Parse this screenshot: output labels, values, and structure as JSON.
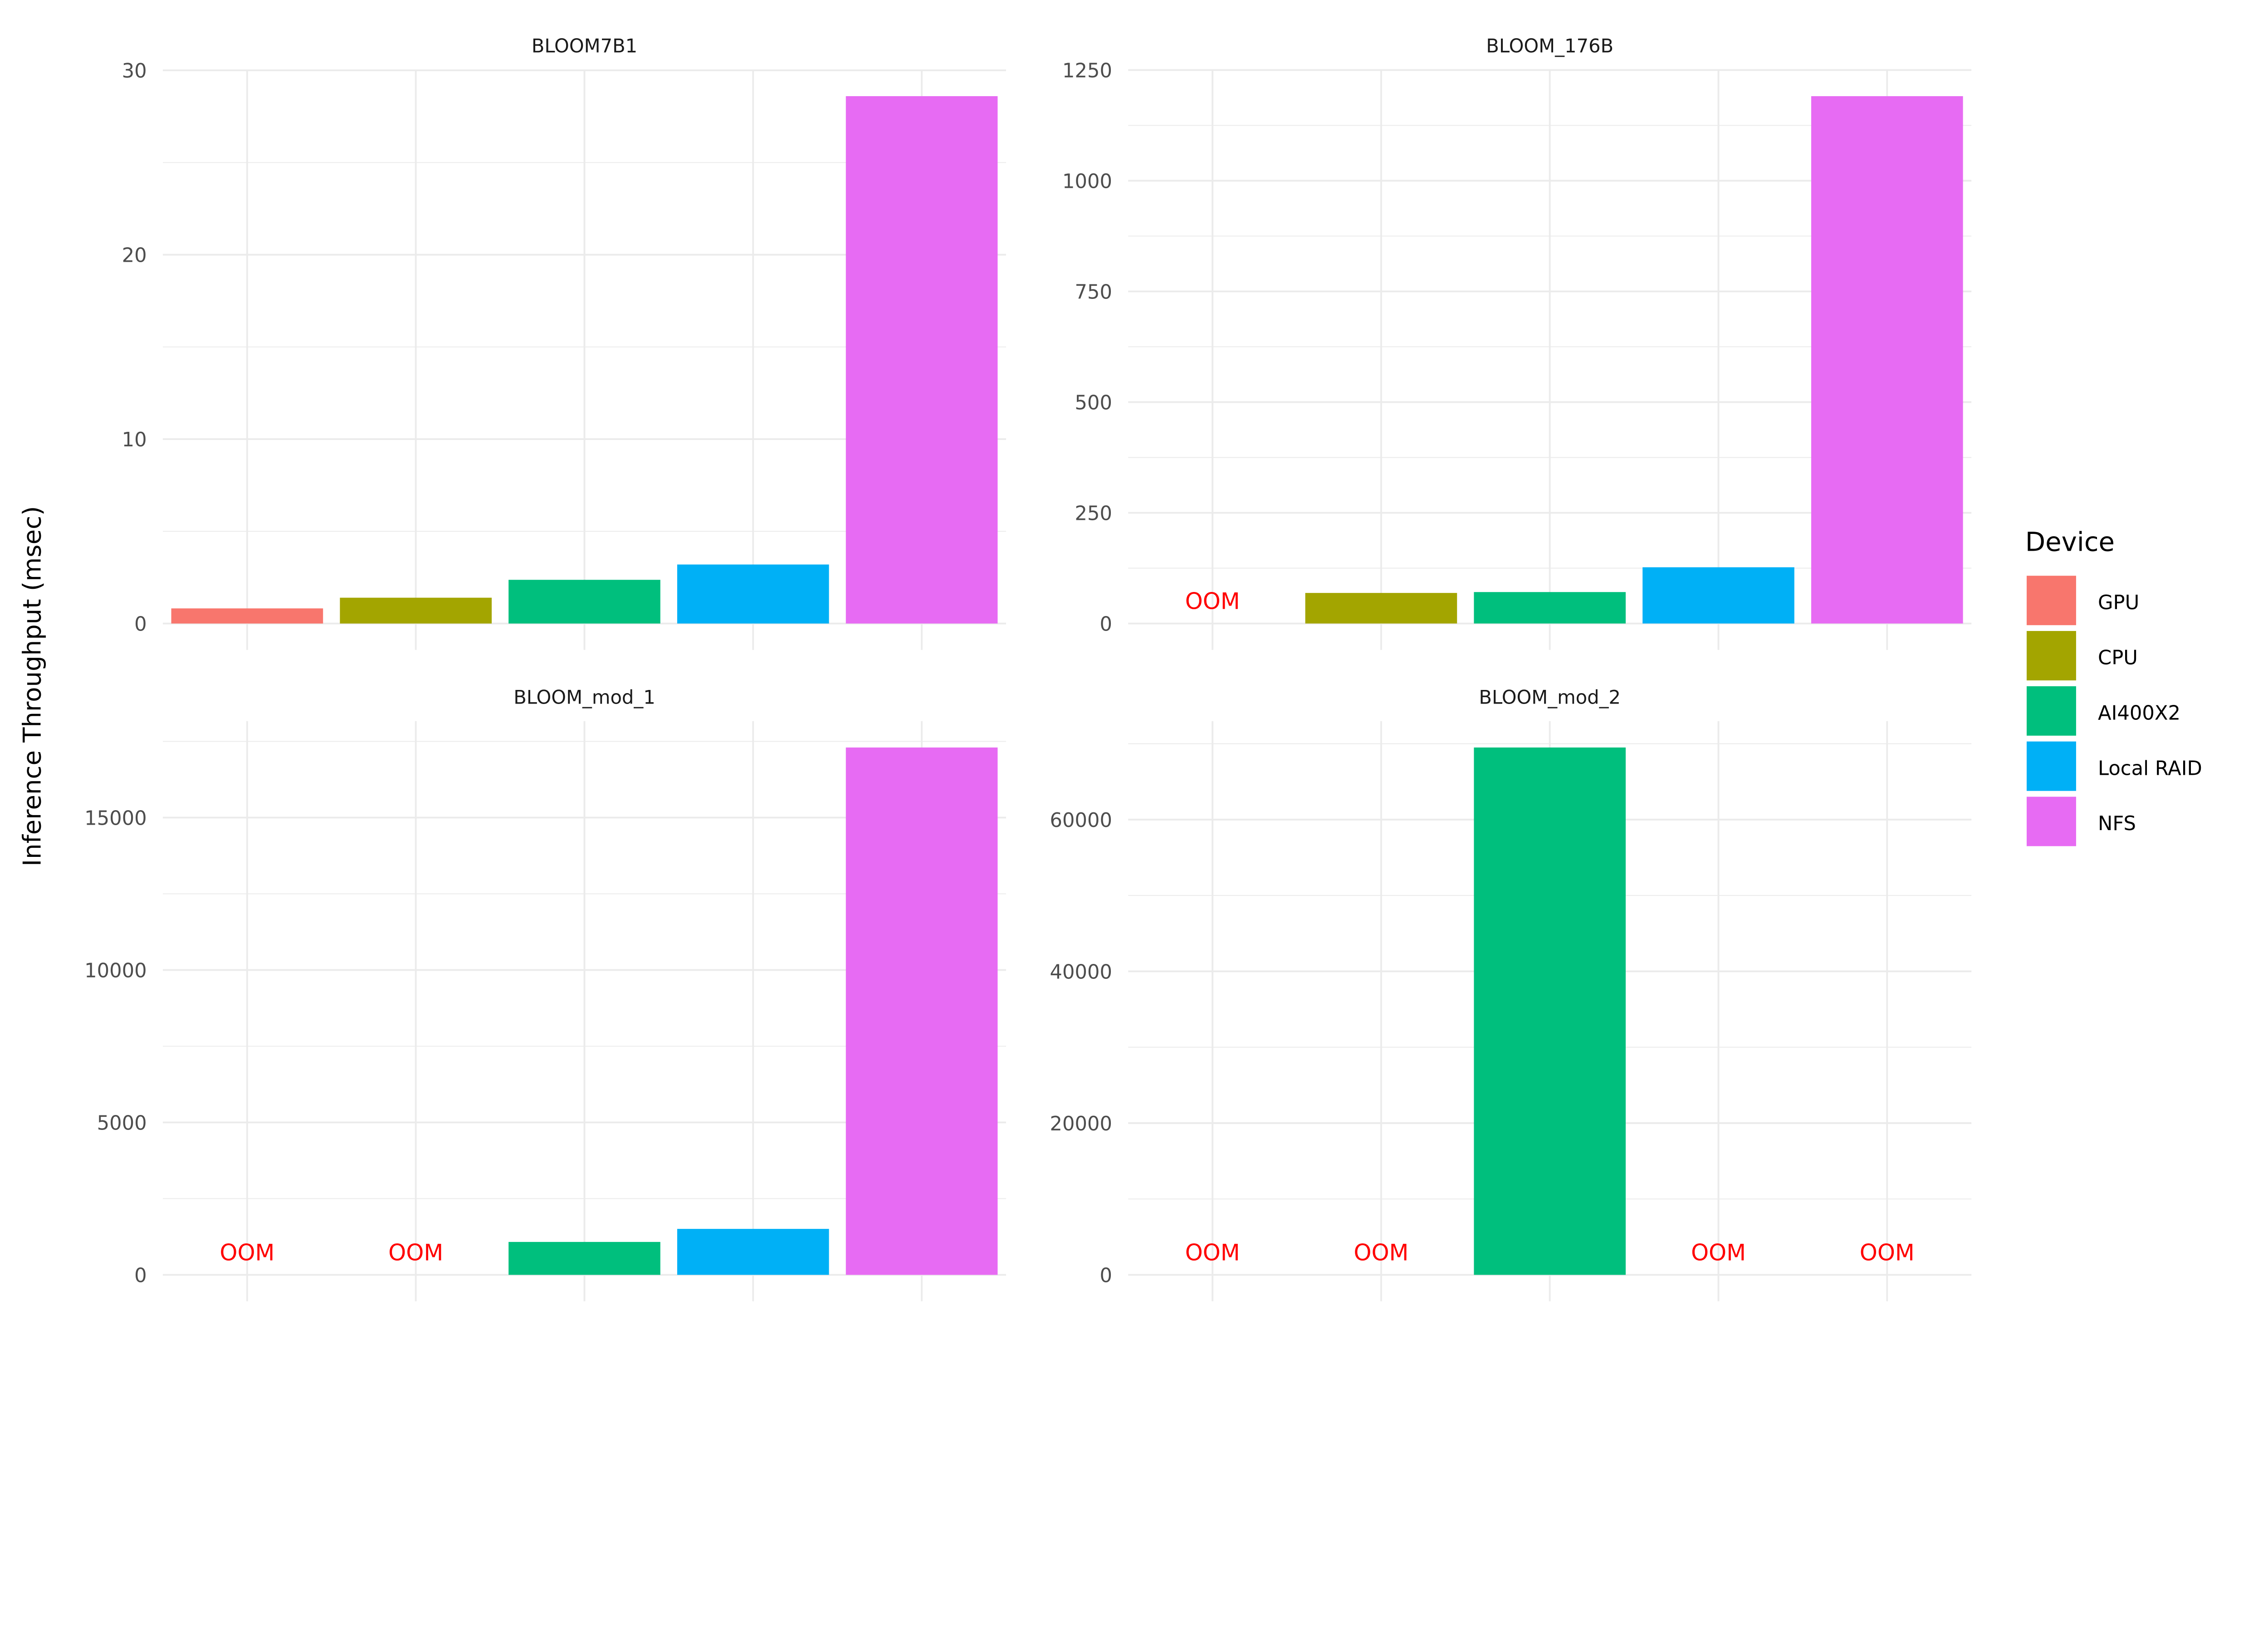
{
  "chart_data": {
    "type": "bar",
    "layout": "facet-grid-2x2",
    "ylabel": "Inference Throughput (msec)",
    "xlabel": "",
    "grid": true,
    "categories": [
      "GPU",
      "CPU",
      "AI400X2",
      "Local RAID",
      "NFS"
    ],
    "colors": [
      "#F8766D",
      "#A3A500",
      "#00BF7D",
      "#00B0F6",
      "#E76BF3"
    ],
    "missing_label": "OOM",
    "missing_color": "#FF0000",
    "legend": {
      "title": "Device",
      "position": "right",
      "entries": [
        "GPU",
        "CPU",
        "AI400X2",
        "Local RAID",
        "NFS"
      ]
    },
    "panels": [
      {
        "title": "BLOOM7B1",
        "values": [
          0.82,
          1.4,
          2.37,
          3.2,
          28.6
        ],
        "yticks": [
          0,
          10,
          20,
          30
        ],
        "yminor": 5,
        "ylim": [
          -1.43,
          30.03
        ]
      },
      {
        "title": "BLOOM_176B",
        "values": [
          null,
          69,
          71,
          127,
          1191
        ],
        "yticks": [
          0,
          250,
          500,
          750,
          1000,
          1250
        ],
        "yminor": 125,
        "ylim": [
          -59.6,
          1250.6
        ]
      },
      {
        "title": "BLOOM_mod_1",
        "values": [
          null,
          null,
          1080,
          1508,
          17300
        ],
        "yticks": [
          0,
          5000,
          10000,
          15000
        ],
        "yminor": 2500,
        "ylim": [
          -865,
          18165
        ]
      },
      {
        "title": "BLOOM_mod_2",
        "values": [
          null,
          null,
          69500,
          null,
          null
        ],
        "yticks": [
          0,
          20000,
          40000,
          60000
        ],
        "yminor": 10000,
        "ylim": [
          -3475,
          72975
        ]
      }
    ]
  }
}
